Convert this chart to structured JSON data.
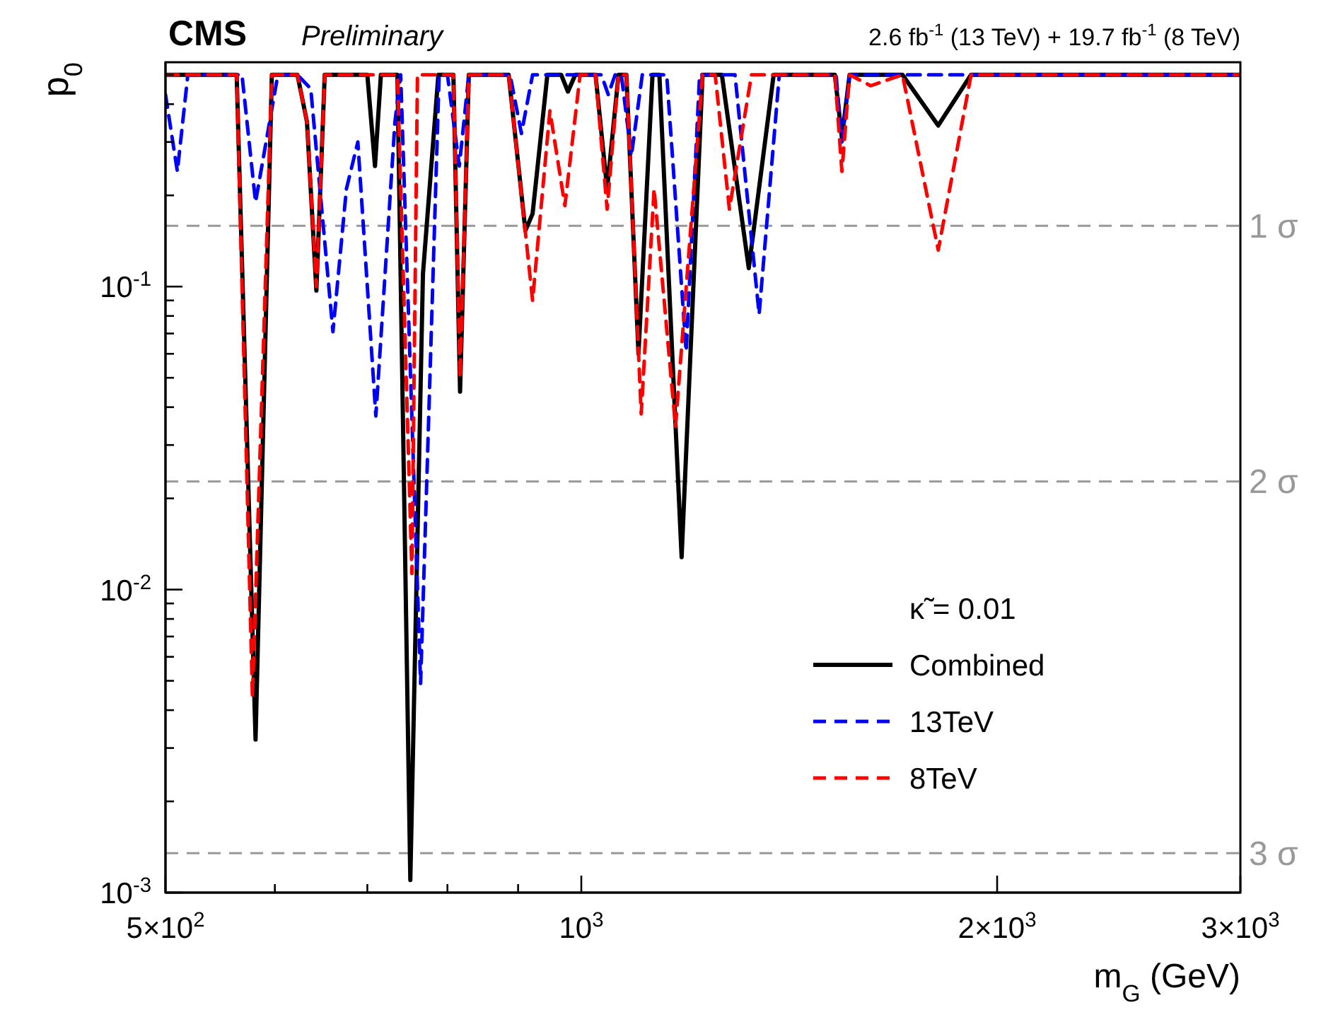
{
  "chart_data": {
    "type": "line",
    "title": "CMS",
    "subtitle": "Preliminary",
    "annotations": [
      "2.6 fb$^{-1}$ (13 TeV) + 19.7 fb$^{-1}$ (8 TeV)"
    ],
    "xlabel": "m$_{G}$ (GeV)",
    "ylabel": "p$_{0}$",
    "legend_title": "κ̃ = 0.01",
    "log": "xy",
    "xlim": [
      500,
      3000
    ],
    "ylim": [
      0.001,
      0.55
    ],
    "xticks": [
      {
        "value": 500,
        "label": "5×10$^{2}$"
      },
      {
        "value": 600,
        "label": null
      },
      {
        "value": 700,
        "label": null
      },
      {
        "value": 800,
        "label": null
      },
      {
        "value": 900,
        "label": null
      },
      {
        "value": 1000,
        "label": "10$^{3}$"
      },
      {
        "value": 2000,
        "label": "2×10$^{3}$"
      },
      {
        "value": 3000,
        "label": "3×10$^{3}$"
      }
    ],
    "yticks": [
      {
        "value": 0.001,
        "label": "10$^{-3}$"
      },
      {
        "value": 0.002,
        "label": null
      },
      {
        "value": 0.003,
        "label": null
      },
      {
        "value": 0.004,
        "label": null
      },
      {
        "value": 0.005,
        "label": null
      },
      {
        "value": 0.006,
        "label": null
      },
      {
        "value": 0.007,
        "label": null
      },
      {
        "value": 0.008,
        "label": null
      },
      {
        "value": 0.009,
        "label": null
      },
      {
        "value": 0.01,
        "label": "10$^{-2}$"
      },
      {
        "value": 0.02,
        "label": null
      },
      {
        "value": 0.03,
        "label": null
      },
      {
        "value": 0.04,
        "label": null
      },
      {
        "value": 0.05,
        "label": null
      },
      {
        "value": 0.06,
        "label": null
      },
      {
        "value": 0.07,
        "label": null
      },
      {
        "value": 0.08,
        "label": null
      },
      {
        "value": 0.09,
        "label": null
      },
      {
        "value": 0.1,
        "label": "10$^{-1}$"
      },
      {
        "value": 0.2,
        "label": null
      },
      {
        "value": 0.3,
        "label": null
      },
      {
        "value": 0.4,
        "label": null
      },
      {
        "value": 0.5,
        "label": null
      }
    ],
    "grid": false,
    "legend": "bottom right",
    "marker": "none",
    "ref_lines": [
      {
        "axis": "y",
        "value": 0.1587,
        "label": "1 σ",
        "color": "#999999",
        "line_style": "dashed"
      },
      {
        "axis": "y",
        "value": 0.02275,
        "label": "2 σ",
        "color": "#999999",
        "line_style": "dashed"
      },
      {
        "axis": "y",
        "value": 0.00135,
        "label": "3 σ",
        "color": "#999999",
        "line_style": "dashed"
      }
    ],
    "series": [
      {
        "name": "Combined",
        "color": "#000000",
        "line_style": "solid",
        "x": [
          500,
          563,
          581,
          597,
          623,
          633,
          643,
          652,
          700,
          709,
          716,
          736,
          752,
          768,
          788,
          808,
          817,
          829,
          886,
          911,
          922,
          945,
          967,
          978,
          990,
          1024,
          1044,
          1064,
          1078,
          1100,
          1126,
          1139,
          1182,
          1224,
          1264,
          1322,
          1378,
          1526,
          1544,
          1564,
          1708,
          1813,
          1915,
          3000
        ],
        "values": [
          0.5,
          0.5,
          0.0032,
          0.5,
          0.5,
          0.35,
          0.097,
          0.5,
          0.5,
          0.25,
          0.5,
          0.5,
          0.0011,
          0.11,
          0.5,
          0.5,
          0.045,
          0.5,
          0.5,
          0.153,
          0.174,
          0.5,
          0.5,
          0.44,
          0.5,
          0.5,
          0.21,
          0.5,
          0.5,
          0.06,
          0.5,
          0.5,
          0.0128,
          0.5,
          0.5,
          0.115,
          0.5,
          0.5,
          0.31,
          0.5,
          0.5,
          0.34,
          0.5,
          0.5
        ]
      },
      {
        "name": "13TeV",
        "color": "#0000ff",
        "line_style": "dashed",
        "x": [
          500,
          510,
          519,
          568,
          581,
          603,
          623,
          637,
          661,
          676,
          689,
          710,
          733,
          740,
          765,
          789,
          800,
          816,
          829,
          888,
          905,
          922,
          1034,
          1046,
          1058,
          1069,
          1087,
          1107,
          1153,
          1191,
          1218,
          1292,
          1345,
          1391,
          1529,
          1544,
          1564,
          3000
        ],
        "values": [
          0.43,
          0.24,
          0.5,
          0.5,
          0.19,
          0.5,
          0.5,
          0.45,
          0.071,
          0.21,
          0.3,
          0.0374,
          0.35,
          0.5,
          0.0049,
          0.5,
          0.5,
          0.25,
          0.5,
          0.5,
          0.32,
          0.5,
          0.5,
          0.43,
          0.5,
          0.5,
          0.27,
          0.5,
          0.5,
          0.061,
          0.5,
          0.5,
          0.081,
          0.5,
          0.5,
          0.3,
          0.5,
          0.5
        ]
      },
      {
        "name": "8TeV",
        "color": "#ff0000",
        "line_style": "dashed",
        "x": [
          500,
          563,
          578,
          597,
          623,
          633,
          643,
          652,
          736,
          754,
          761,
          808,
          817,
          829,
          886,
          922,
          949,
          973,
          998,
          1024,
          1044,
          1064,
          1078,
          1105,
          1129,
          1170,
          1224,
          1250,
          1280,
          1328,
          1526,
          1544,
          1564,
          1620,
          1708,
          1813,
          1915,
          3000
        ],
        "values": [
          0.5,
          0.5,
          0.0044,
          0.5,
          0.5,
          0.35,
          0.1,
          0.5,
          0.5,
          0.0113,
          0.5,
          0.5,
          0.05,
          0.5,
          0.5,
          0.09,
          0.38,
          0.185,
          0.5,
          0.5,
          0.18,
          0.5,
          0.5,
          0.038,
          0.21,
          0.0345,
          0.5,
          0.5,
          0.18,
          0.5,
          0.5,
          0.24,
          0.5,
          0.46,
          0.5,
          0.132,
          0.5,
          0.5
        ]
      }
    ]
  }
}
